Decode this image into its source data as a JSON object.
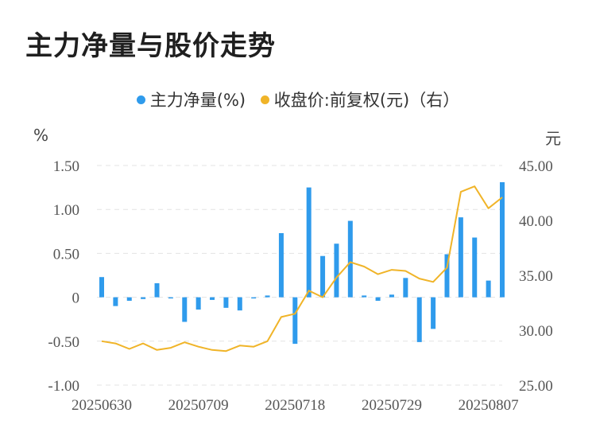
{
  "page_title": "主力净量与股价走势",
  "colors": {
    "bar": "#2f9bec",
    "line": "#f0b428",
    "grid": "#e3e3e3"
  },
  "chart_data": {
    "type": "bar+line",
    "title": "主力净量与股价走势",
    "left_unit": "%",
    "right_unit": "元",
    "legend": [
      {
        "name": "主力净量(%)",
        "color": "#2f9bec",
        "icon": "circle"
      },
      {
        "name": "收盘价:前复权(元)（右）",
        "color": "#f0b428",
        "icon": "circle"
      }
    ],
    "y_left": {
      "min": -1.0,
      "max": 1.5,
      "ticks": [
        "-1.00",
        "-0.50",
        "0",
        "0.50",
        "1.00",
        "1.50"
      ],
      "tick_values": [
        -1.0,
        -0.5,
        0,
        0.5,
        1.0,
        1.5
      ]
    },
    "y_right": {
      "min": 25,
      "max": 45,
      "ticks": [
        "25.00",
        "30.00",
        "35.00",
        "40.00",
        "45.00"
      ],
      "tick_values": [
        25,
        30,
        35,
        40,
        45
      ]
    },
    "x_tick_labels": [
      {
        "label": "20250630",
        "index": 0
      },
      {
        "label": "20250709",
        "index": 7
      },
      {
        "label": "20250718",
        "index": 14
      },
      {
        "label": "20250729",
        "index": 21
      },
      {
        "label": "20250807",
        "index": 28
      }
    ],
    "series": [
      {
        "name": "主力净量(%)",
        "kind": "bar",
        "axis": "left",
        "values": [
          0.23,
          -0.1,
          -0.04,
          -0.02,
          0.16,
          -0.01,
          -0.28,
          -0.14,
          -0.03,
          -0.12,
          -0.15,
          -0.01,
          0.02,
          0.73,
          -0.53,
          1.25,
          0.47,
          0.61,
          0.87,
          0.02,
          -0.04,
          0.03,
          0.22,
          -0.51,
          -0.36,
          0.49,
          0.91,
          0.68,
          0.19,
          1.31
        ]
      },
      {
        "name": "收盘价:前复权(元)（右）",
        "kind": "line",
        "axis": "right",
        "values": [
          29.0,
          28.8,
          28.3,
          28.8,
          28.2,
          28.4,
          28.9,
          28.5,
          28.2,
          28.1,
          28.6,
          28.5,
          29.0,
          31.2,
          31.5,
          33.6,
          33.0,
          34.8,
          36.2,
          35.8,
          35.1,
          35.5,
          35.4,
          34.7,
          34.4,
          35.7,
          42.6,
          43.1,
          41.1,
          42.1
        ]
      }
    ]
  }
}
